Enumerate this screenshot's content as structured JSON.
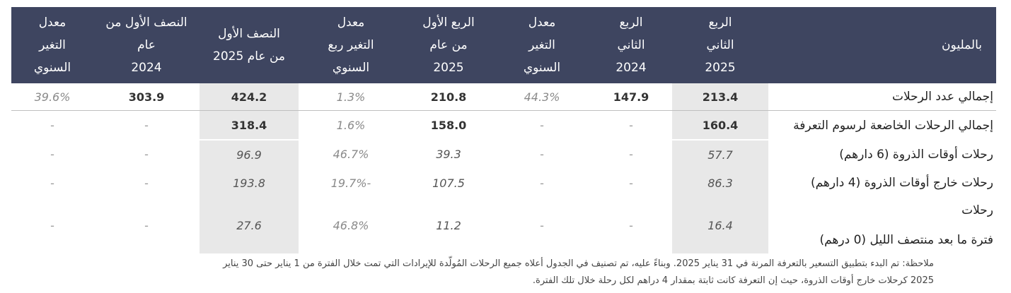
{
  "table": {
    "headers": [
      "بالمليون",
      "الربع\nالثاني\n2025",
      "الربع\nالثاني\n2024",
      "معدل\nالتغير\nالسنوي",
      "الربع الأول\nمن عام\n2025",
      "معدل\nالتغير ربع\nالسنوي",
      "النصف الأول\nمن عام 2025",
      "النصف الأول من عام\n2024",
      "معدل\nالتغير\nالسنوي"
    ],
    "rows": [
      {
        "label": "إجمالي عدد الرحلات",
        "cells": [
          "213.4",
          "147.9",
          "44.3%",
          "210.8",
          "1.3%",
          "424.2",
          "303.9",
          "39.6%"
        ]
      },
      {
        "label": "إجمالي الرحلات الخاضعة لرسوم التعرفة",
        "cells": [
          "160.4",
          "-",
          "-",
          "158.0",
          "1.6%",
          "318.4",
          "-",
          "-"
        ]
      },
      {
        "label": "رحلات أوقات الذروة (6 دارهم)",
        "cells": [
          "57.7",
          "-",
          "-",
          "39.3",
          "46.7%",
          "96.9",
          "-",
          "-"
        ]
      },
      {
        "label": "رحلات خارج أوقات الذروة (4 دارهم)",
        "cells": [
          "86.3",
          "-",
          "-",
          "107.5",
          "-19.7%",
          "193.8",
          "-",
          "-"
        ]
      },
      {
        "label_line1": "رحلات",
        "label_line2": "فترة ما بعد منتصف الليل (0 درهم)",
        "cells": [
          "16.4",
          "-",
          "-",
          "11.2",
          "46.8%",
          "27.6",
          "-",
          "-"
        ]
      }
    ]
  },
  "note": {
    "line1": "ملاحظة: تم البدء بتطبيق التسعير بالتعرفة المرنة في 31 يناير 2025. وبناءً عليه، تم تصنيف في الجدول أعلاه جميع الرحلات المُولّدة للإيرادات التي تمت خلال الفترة من 1 يناير حتى 30 يناير",
    "line2": "2025 كرحلات خارج أوقات الذروة، حيث إن التعرفة كانت ثابتة بمقدار 4 دراهم لكل رحلة خلال تلك الفترة."
  }
}
